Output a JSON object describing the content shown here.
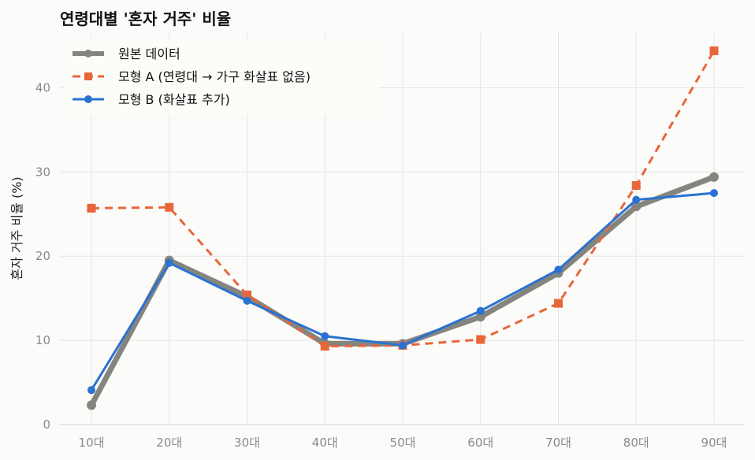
{
  "chart_data": {
    "type": "line",
    "title": "연령대별 '혼자 거주' 비율",
    "xlabel": "",
    "ylabel": "혼자 거주 비율 (%)",
    "categories": [
      "10대",
      "20대",
      "30대",
      "40대",
      "50대",
      "60대",
      "70대",
      "80대",
      "90대"
    ],
    "ylim": [
      0,
      46.5
    ],
    "yticks": [
      0,
      10,
      20,
      30,
      40
    ],
    "grid": true,
    "legend_position": "top-left",
    "series": [
      {
        "name": "원본 데이터",
        "values": [
          2.3,
          19.5,
          15.2,
          9.6,
          9.6,
          12.8,
          18.0,
          25.9,
          29.4
        ],
        "color": "#858580",
        "marker": "circle",
        "style": "solid-thick"
      },
      {
        "name": "모형 A (연령대 → 가구 화살표 없음)",
        "values": [
          25.7,
          25.8,
          15.4,
          9.3,
          9.4,
          10.1,
          14.4,
          28.4,
          44.4
        ],
        "color": "#e8663a",
        "marker": "square",
        "style": "dashed"
      },
      {
        "name": "모형 B (화살표 추가)",
        "values": [
          4.1,
          19.2,
          14.7,
          10.5,
          9.4,
          13.5,
          18.4,
          26.7,
          27.5
        ],
        "color": "#2a72d2",
        "marker": "circle",
        "style": "solid"
      }
    ]
  }
}
